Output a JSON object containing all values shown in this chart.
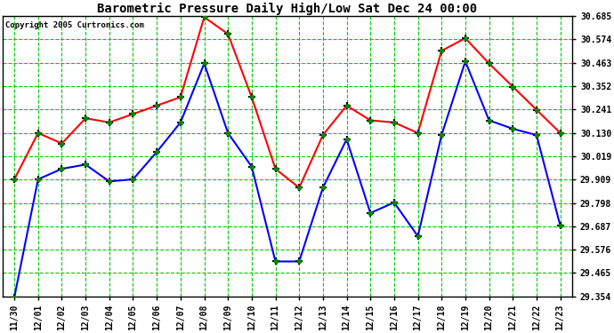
{
  "title": "Barometric Pressure Daily High/Low Sat Dec 24 00:00",
  "copyright": "Copyright 2005 Curtronics.com",
  "background_color": "#ffffff",
  "plot_bg_color": "#ffffff",
  "grid_color": "#00cc00",
  "title_color": "#000000",
  "label_color": "#000000",
  "x_labels": [
    "11/30",
    "12/01",
    "12/02",
    "12/03",
    "12/04",
    "12/05",
    "12/06",
    "12/07",
    "12/08",
    "12/09",
    "12/10",
    "12/11",
    "12/12",
    "12/13",
    "12/14",
    "12/15",
    "12/16",
    "12/17",
    "12/18",
    "12/19",
    "12/20",
    "12/21",
    "12/22",
    "12/23"
  ],
  "high_values": [
    29.91,
    30.13,
    30.08,
    30.2,
    30.18,
    30.22,
    30.26,
    30.3,
    30.68,
    30.6,
    30.3,
    29.96,
    29.87,
    30.12,
    30.26,
    30.19,
    30.18,
    30.13,
    30.52,
    30.58,
    30.46,
    30.35,
    30.24,
    30.13
  ],
  "low_values": [
    29.35,
    29.91,
    29.96,
    29.98,
    29.9,
    29.91,
    30.04,
    30.18,
    30.46,
    30.13,
    29.97,
    29.52,
    29.52,
    29.87,
    30.1,
    29.75,
    29.8,
    29.64,
    30.12,
    30.47,
    30.19,
    30.15,
    30.12,
    29.69
  ],
  "high_color": "#ff0000",
  "low_color": "#0000ff",
  "marker_color": "#008800",
  "ylim_min": 29.354,
  "ylim_max": 30.685,
  "yticks": [
    29.354,
    29.465,
    29.576,
    29.687,
    29.798,
    29.909,
    30.019,
    30.13,
    30.241,
    30.352,
    30.463,
    30.574,
    30.685
  ]
}
